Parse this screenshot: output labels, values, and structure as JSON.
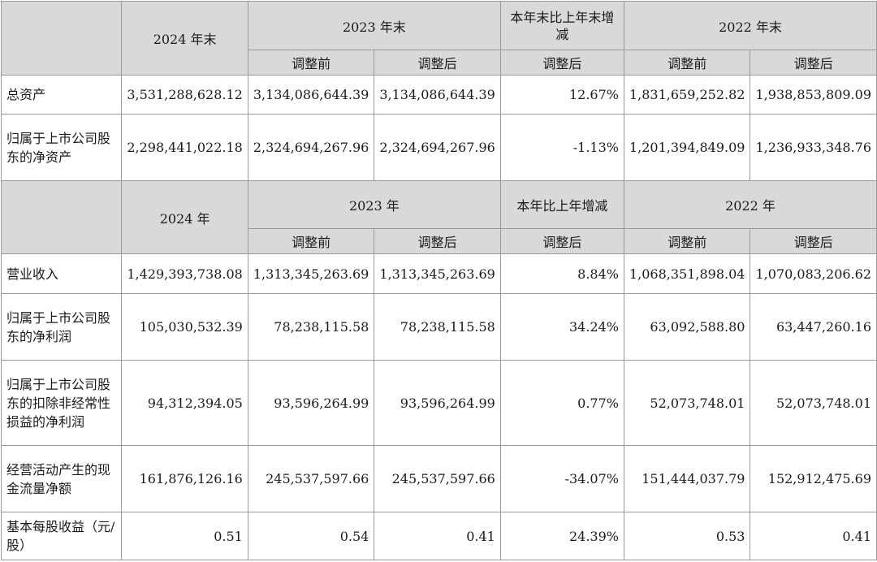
{
  "balance_header": {
    "year_2024": "2024 年末",
    "year_2023": "2023 年末",
    "change": "本年末比上年末增减",
    "year_2022": "2022 年末",
    "before": "调整前",
    "after": "调整后"
  },
  "balance_rows": [
    {
      "label": "总资产",
      "v2024": "3,531,288,628.12",
      "v2023_before": "3,134,086,644.39",
      "v2023_after": "3,134,086,644.39",
      "change": "12.67%",
      "v2022_before": "1,831,659,252.82",
      "v2022_after": "1,938,853,809.09"
    },
    {
      "label": "归属于上市公司股东的净资产",
      "v2024": "2,298,441,022.18",
      "v2023_before": "2,324,694,267.96",
      "v2023_after": "2,324,694,267.96",
      "change": "-1.13%",
      "v2022_before": "1,201,394,849.09",
      "v2022_after": "1,236,933,348.76"
    }
  ],
  "income_header": {
    "year_2024": "2024 年",
    "year_2023": "2023 年",
    "change": "本年比上年增减",
    "year_2022": "2022 年",
    "before": "调整前",
    "after": "调整后"
  },
  "income_rows": [
    {
      "label": "营业收入",
      "v2024": "1,429,393,738.08",
      "v2023_before": "1,313,345,263.69",
      "v2023_after": "1,313,345,263.69",
      "change": "8.84%",
      "v2022_before": "1,068,351,898.04",
      "v2022_after": "1,070,083,206.62"
    },
    {
      "label": "归属于上市公司股东的净利润",
      "v2024": "105,030,532.39",
      "v2023_before": "78,238,115.58",
      "v2023_after": "78,238,115.58",
      "change": "34.24%",
      "v2022_before": "63,092,588.80",
      "v2022_after": "63,447,260.16"
    },
    {
      "label": "归属于上市公司股东的扣除非经常性损益的净利润",
      "v2024": "94,312,394.05",
      "v2023_before": "93,596,264.99",
      "v2023_after": "93,596,264.99",
      "change": "0.77%",
      "v2022_before": "52,073,748.01",
      "v2022_after": "52,073,748.01"
    },
    {
      "label": "经营活动产生的现金流量净额",
      "v2024": "161,876,126.16",
      "v2023_before": "245,537,597.66",
      "v2023_after": "245,537,597.66",
      "change": "-34.07%",
      "v2022_before": "151,444,037.79",
      "v2022_after": "152,912,475.69"
    },
    {
      "label": "基本每股收益（元/股）",
      "v2024": "0.51",
      "v2023_before": "0.54",
      "v2023_after": "0.41",
      "change": "24.39%",
      "v2022_before": "0.53",
      "v2022_after": "0.41"
    }
  ]
}
